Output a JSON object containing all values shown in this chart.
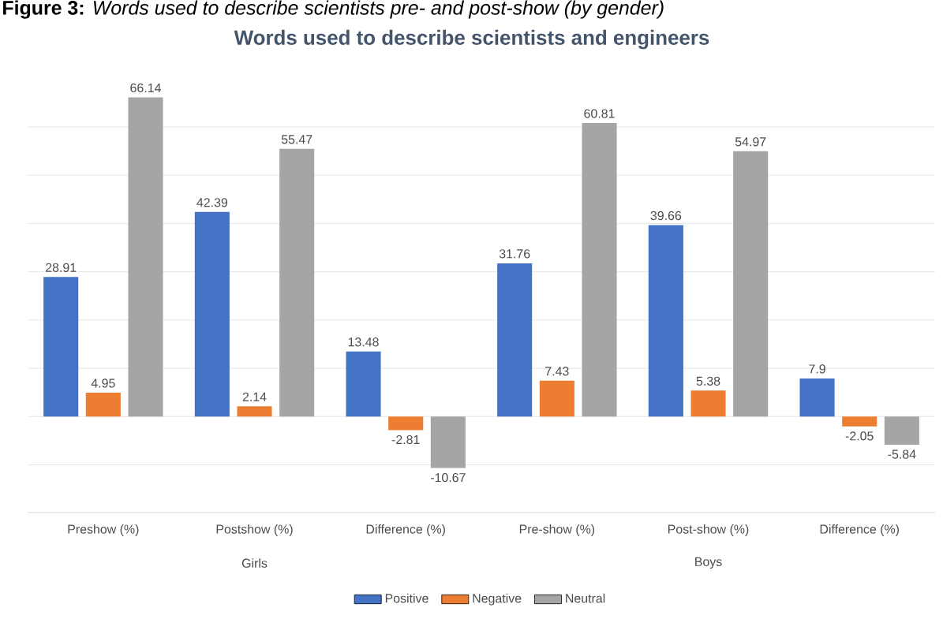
{
  "chart_data": {
    "type": "bar",
    "title": "Words used to describe scientists and engineers",
    "categories": [
      "Preshow (%)",
      "Postshow (%)",
      "Difference (%)",
      "Pre-show (%)",
      "Post-show (%)",
      "Difference (%)"
    ],
    "series": [
      {
        "name": "Positive",
        "color": "#4472c4",
        "values": [
          28.91,
          42.39,
          13.48,
          31.76,
          39.66,
          7.9
        ]
      },
      {
        "name": "Negative",
        "color": "#ed7d31",
        "values": [
          4.95,
          2.14,
          -2.81,
          7.43,
          5.38,
          -2.05
        ]
      },
      {
        "name": "Neutral",
        "color": "#a5a5a5",
        "values": [
          66.14,
          55.47,
          -10.67,
          60.81,
          54.97,
          -5.84
        ]
      }
    ],
    "annotations": [
      "**Figure 3:** *Words used to describe scientists pre- and post-show (by gender)*",
      "Girls",
      "Boys"
    ],
    "tick_labels": "x",
    "grid": "y",
    "legend": "bottom",
    "data_labels": true
  }
}
